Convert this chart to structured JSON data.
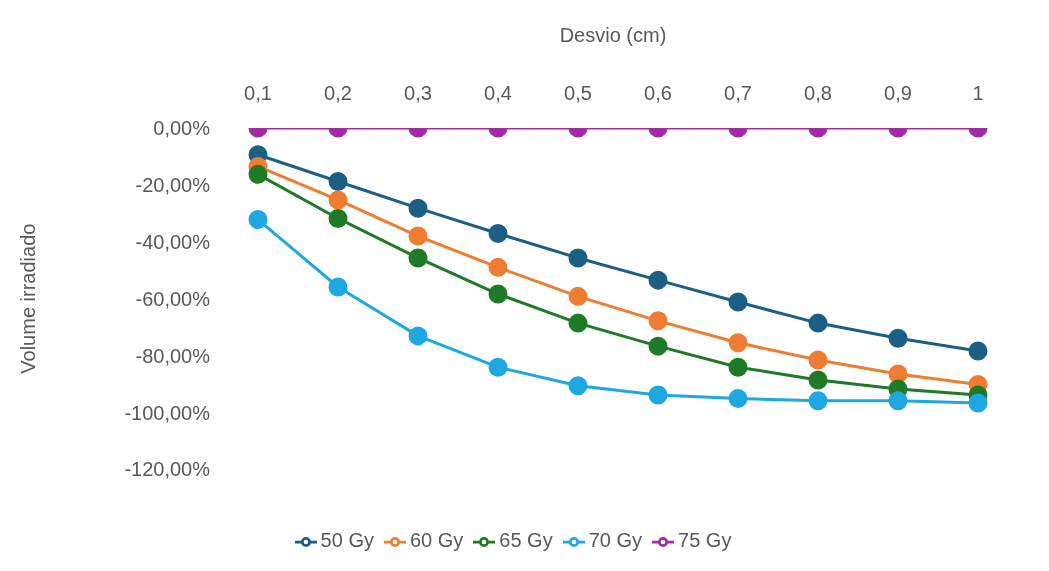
{
  "chart_data": {
    "type": "line",
    "xlabel": "Desvio (cm)",
    "ylabel": "Volume irradiado",
    "categories": [
      "0,1",
      "0,2",
      "0,3",
      "0,4",
      "0,5",
      "0,6",
      "0,7",
      "0,8",
      "0,9",
      "1"
    ],
    "ylim": [
      -120,
      0
    ],
    "yticks": [
      {
        "value": 0,
        "label": "0,00%"
      },
      {
        "value": -20,
        "label": "-20,00%"
      },
      {
        "value": -40,
        "label": "-40,00%"
      },
      {
        "value": -60,
        "label": "-60,00%"
      },
      {
        "value": -80,
        "label": "-80,00%"
      },
      {
        "value": -100,
        "label": "-100,00%"
      },
      {
        "value": -120,
        "label": "-120,00%"
      }
    ],
    "grid": false,
    "legend": "bottom",
    "marker": "circle",
    "line_style": "solid",
    "series": [
      {
        "name": "50 Gy",
        "color": "#1c5f85",
        "values": [
          -9.4,
          -18.8,
          -28.2,
          -37.1,
          -45.7,
          -53.5,
          -61.2,
          -68.6,
          -73.9,
          -78.4
        ]
      },
      {
        "name": "60 Gy",
        "color": "#ee7d31",
        "values": [
          -13.5,
          -25.3,
          -38,
          -49,
          -59.2,
          -67.8,
          -75.5,
          -81.6,
          -86.5,
          -90.2
        ]
      },
      {
        "name": "65 Gy",
        "color": "#1e7a26",
        "values": [
          -16.3,
          -31.8,
          -45.7,
          -58.4,
          -68.6,
          -76.7,
          -84.1,
          -88.6,
          -91.8,
          -93.9
        ]
      },
      {
        "name": "70 Gy",
        "color": "#1ea7e0",
        "values": [
          -32.2,
          -55.9,
          -73.1,
          -84.1,
          -90.6,
          -93.9,
          -95.1,
          -95.9,
          -95.9,
          -96.7
        ]
      },
      {
        "name": "75 Gy",
        "color": "#a22ca2",
        "values": [
          0,
          0,
          0,
          0,
          0,
          0,
          0,
          0,
          0,
          0
        ]
      }
    ]
  }
}
